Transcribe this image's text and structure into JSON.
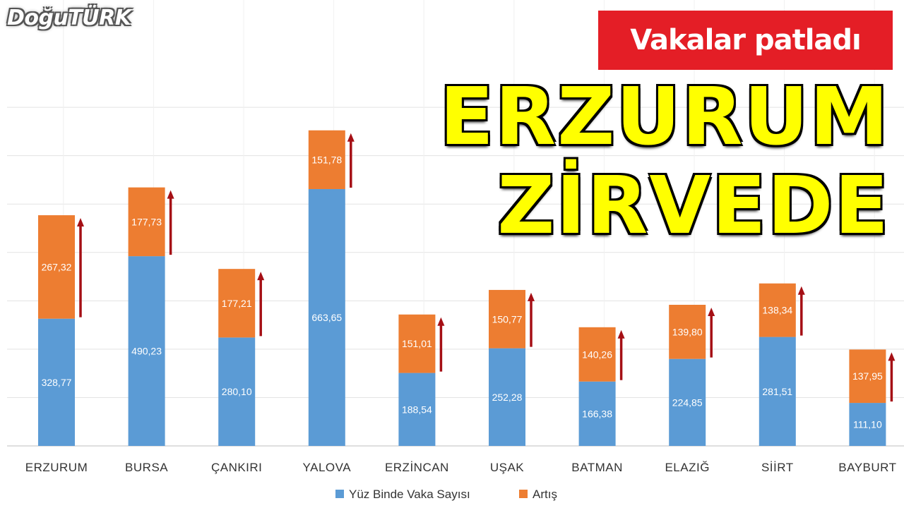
{
  "brand": {
    "logo_text": "DoğuTÜRK"
  },
  "headline": {
    "badge": "Vakalar patladı",
    "line1": "ERZURUM",
    "line2": "ZİRVEDE"
  },
  "colors": {
    "base": "#5b9bd5",
    "increase": "#ed7d31",
    "arrow": "#a50f15",
    "badge": "#e41e26",
    "headline": "#ffff00"
  },
  "chart_data": {
    "type": "bar",
    "stacked": true,
    "categories": [
      "ERZURUM",
      "BURSA",
      "ÇANKIRI",
      "YALOVA",
      "ERZİNCAN",
      "UŞAK",
      "BATMAN",
      "ELAZIĞ",
      "SİİRT",
      "BAYBURT"
    ],
    "series": [
      {
        "name": "Yüz Binde Vaka Sayısı",
        "values": [
          328.77,
          490.23,
          280.1,
          663.65,
          188.54,
          252.28,
          166.38,
          224.85,
          281.51,
          111.1
        ]
      },
      {
        "name": "Artış",
        "values": [
          267.32,
          177.73,
          177.21,
          151.78,
          151.01,
          150.77,
          140.26,
          139.8,
          138.34,
          137.95
        ]
      }
    ],
    "base_labels": [
      "328,77",
      "490,23",
      "280,10",
      "663,65",
      "188,54",
      "252,28",
      "166,38",
      "224,85",
      "281,51",
      "111,10"
    ],
    "increase_labels": [
      "267,32",
      "177,73",
      "177,21",
      "151,78",
      "151,01",
      "150,77",
      "140,26",
      "139,80",
      "138,34",
      "137,95"
    ],
    "ylim": [
      0,
      900
    ],
    "grid": true,
    "legend_position": "bottom",
    "annotations": "upward arrow beside each stacked bar"
  }
}
